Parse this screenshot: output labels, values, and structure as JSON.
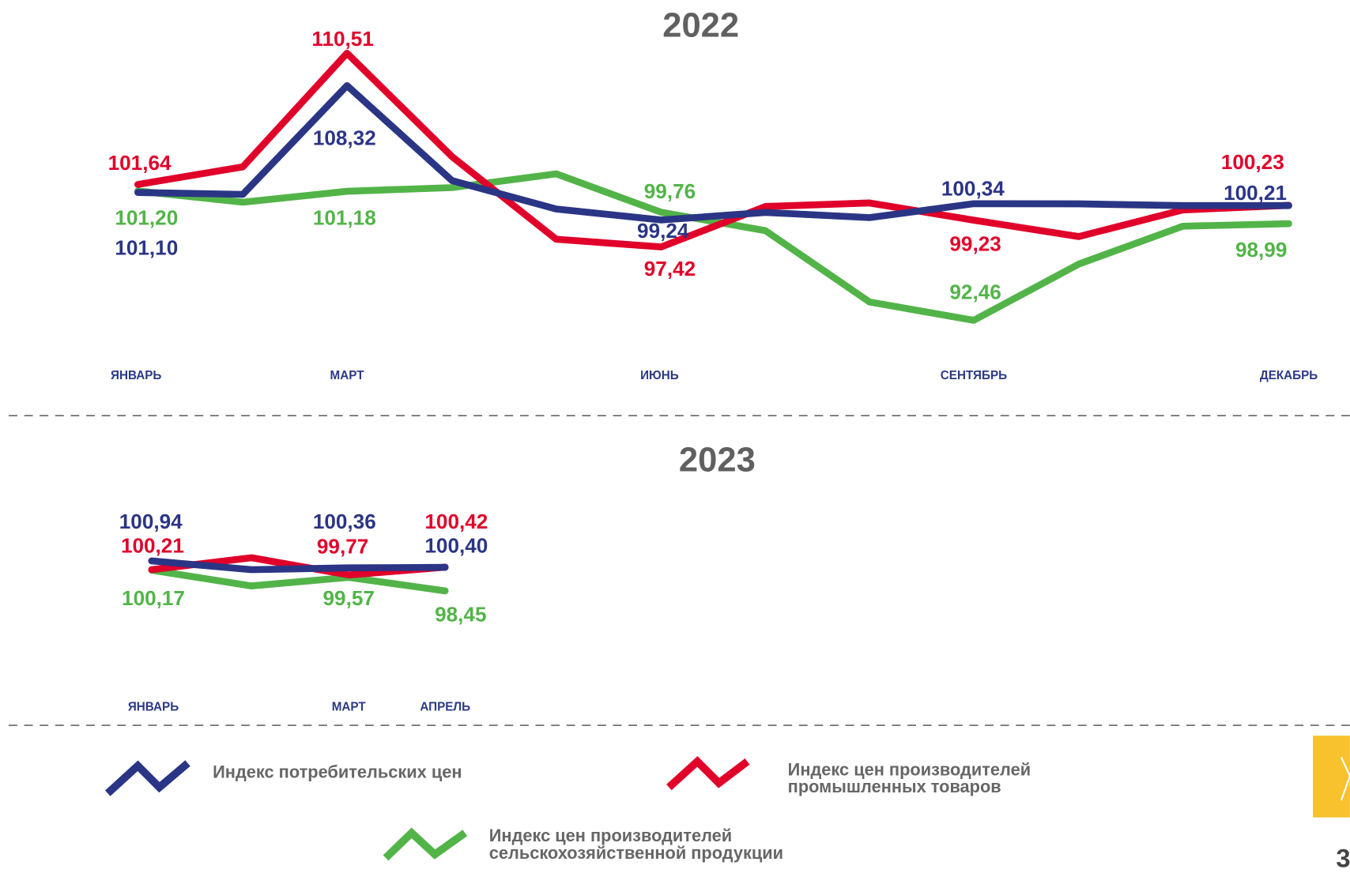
{
  "chart_data": [
    {
      "type": "line",
      "title": "2022",
      "categories": [
        "ЯНВАРЬ",
        null,
        "МАРТ",
        null,
        null,
        "ИЮНЬ",
        null,
        null,
        "СЕНТЯБРЬ",
        null,
        null,
        "ДЕКАБРЬ"
      ],
      "ylim": [
        92,
        111
      ],
      "series": [
        {
          "name": "Индекс потребительских цен",
          "color": "#2b3585",
          "values": [
            101.1,
            100.97,
            108.32,
            101.9,
            99.98,
            99.24,
            99.75,
            99.4,
            100.34,
            100.33,
            100.21,
            100.21
          ],
          "value_labels": [
            "101,10",
            null,
            "108,32",
            null,
            null,
            "99,24",
            null,
            null,
            "100,34",
            null,
            null,
            "100,21"
          ]
        },
        {
          "name": "Индекс цен производителей промышленных товаров",
          "color": "#e0002a",
          "values": [
            101.64,
            102.83,
            110.51,
            103.52,
            97.94,
            97.42,
            100.15,
            100.39,
            99.23,
            98.12,
            99.92,
            100.23
          ],
          "value_labels": [
            "101,64",
            null,
            "110,51",
            null,
            null,
            "97,42",
            null,
            null,
            "99,23",
            null,
            null,
            "100,23"
          ]
        },
        {
          "name": "Индекс цен производителей сельскохозяйственной продукции",
          "color": "#52b448",
          "values": [
            101.2,
            100.44,
            101.18,
            101.43,
            102.36,
            99.76,
            98.52,
            93.7,
            92.46,
            96.26,
            98.82,
            98.99
          ],
          "value_labels": [
            "101,20",
            null,
            "101,18",
            null,
            null,
            "99,76",
            null,
            null,
            "92,46",
            null,
            null,
            "98,99"
          ]
        }
      ]
    },
    {
      "type": "line",
      "title": "2023",
      "categories": [
        "ЯНВАРЬ",
        null,
        "МАРТ",
        "АПРЕЛЬ"
      ],
      "ylim": [
        97,
        102
      ],
      "series": [
        {
          "color": "#2b3585",
          "values": [
            100.94,
            100.21,
            100.36,
            100.4
          ],
          "value_labels": [
            "100,94",
            null,
            "100,36",
            "100,40"
          ]
        },
        {
          "color": "#e0002a",
          "values": [
            100.21,
            101.2,
            99.77,
            100.42
          ],
          "value_labels": [
            "100,21",
            null,
            "99,77",
            "100,42"
          ]
        },
        {
          "color": "#52b448",
          "values": [
            100.17,
            98.86,
            99.57,
            98.45
          ],
          "value_labels": [
            "100,17",
            null,
            "99,57",
            "98,45"
          ]
        }
      ]
    }
  ],
  "page_number": "3"
}
